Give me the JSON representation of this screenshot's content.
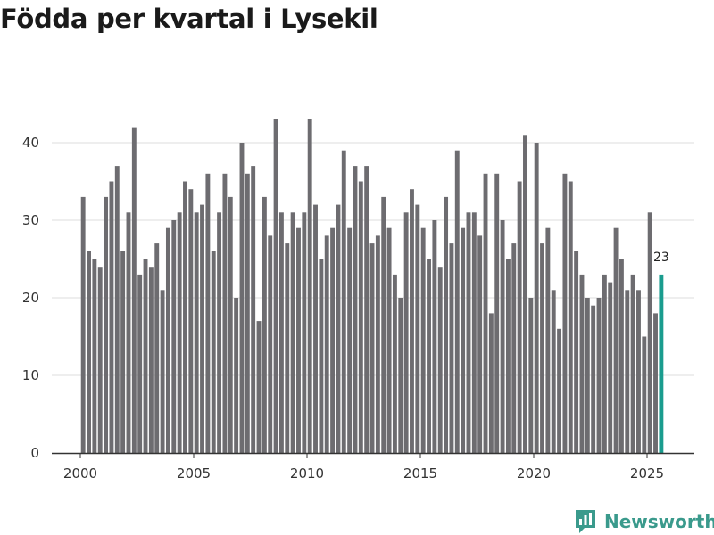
{
  "title": "Födda per kvartal i Lysekil",
  "brand": {
    "name": "Newsworthy",
    "icon": "newsworthy-logo-icon",
    "color": "#3a9a8c"
  },
  "colors": {
    "bar": "#6d6c70",
    "highlight": "#1a9c8e",
    "grid": "#dddddd",
    "axis": "#333333"
  },
  "chart_data": {
    "type": "bar",
    "title": "Födda per kvartal i Lysekil",
    "xlabel": "",
    "ylabel": "",
    "ylim": [
      0,
      45
    ],
    "yticks": [
      0,
      10,
      20,
      30,
      40
    ],
    "xticks": [
      "2000",
      "2005",
      "2010",
      "2015",
      "2020",
      "2025"
    ],
    "grid": true,
    "start": "2000 Q1",
    "values": [
      33,
      26,
      25,
      24,
      33,
      35,
      37,
      26,
      31,
      42,
      23,
      25,
      24,
      27,
      21,
      29,
      30,
      31,
      35,
      34,
      31,
      32,
      36,
      26,
      31,
      36,
      33,
      20,
      40,
      36,
      37,
      17,
      33,
      28,
      43,
      31,
      27,
      31,
      29,
      31,
      43,
      32,
      25,
      28,
      29,
      32,
      39,
      29,
      37,
      35,
      37,
      27,
      28,
      33,
      29,
      23,
      20,
      31,
      34,
      32,
      29,
      25,
      30,
      24,
      33,
      27,
      39,
      29,
      31,
      31,
      28,
      36,
      18,
      36,
      30,
      25,
      27,
      35,
      41,
      20,
      40,
      27,
      29,
      21,
      16,
      36,
      35,
      26,
      23,
      20,
      19,
      20,
      23,
      22,
      29,
      25,
      21,
      23,
      21,
      15,
      31,
      18,
      23
    ],
    "highlight_last": true,
    "last_label": "23"
  }
}
